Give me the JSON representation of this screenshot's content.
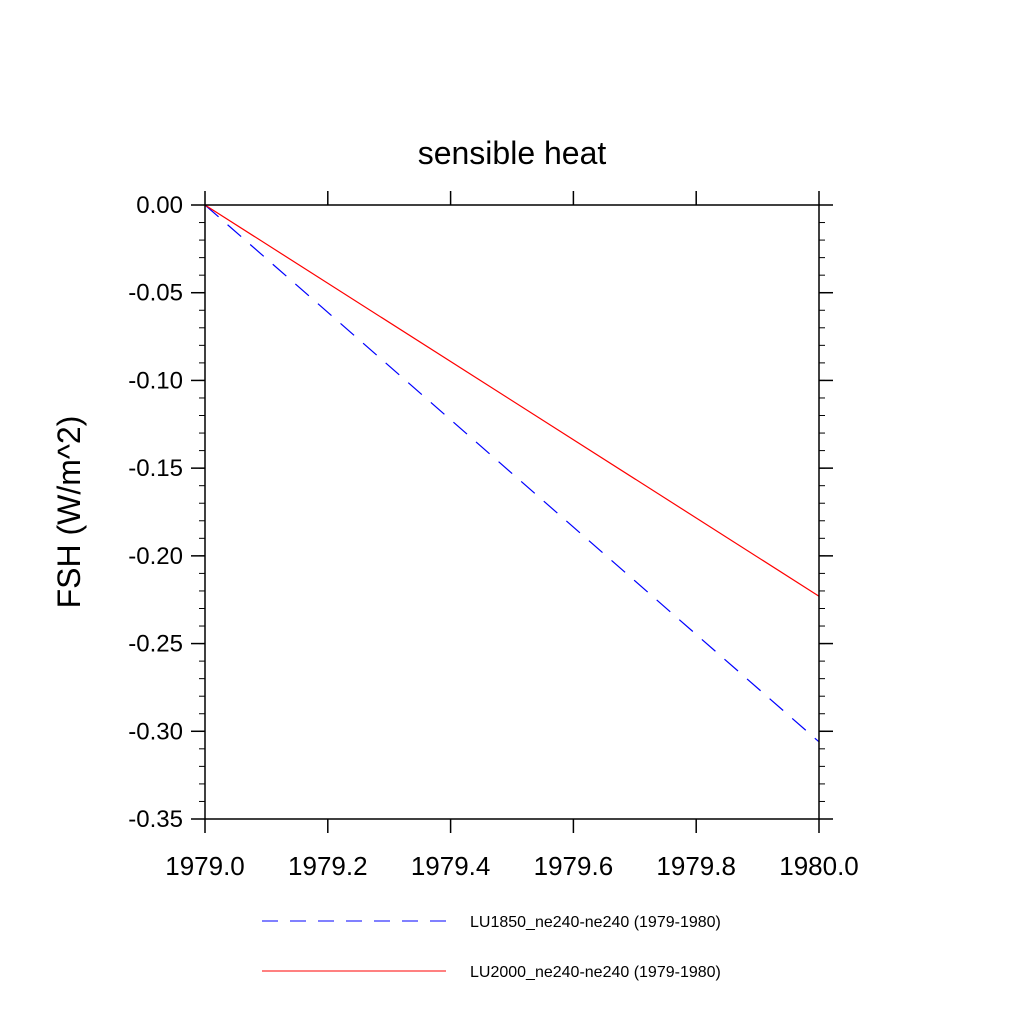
{
  "chart_data": {
    "type": "line",
    "title": "sensible heat",
    "xlabel": "",
    "ylabel": "FSH  (W/m^2)",
    "xlim": [
      1979.0,
      1980.0
    ],
    "ylim": [
      -0.35,
      0.0
    ],
    "xticks": [
      1979.0,
      1979.2,
      1979.4,
      1979.6,
      1979.8,
      1980.0
    ],
    "xtick_labels": [
      "1979.0",
      "1979.2",
      "1979.4",
      "1979.6",
      "1979.8",
      "1980.0"
    ],
    "yticks": [
      0.0,
      -0.05,
      -0.1,
      -0.15,
      -0.2,
      -0.25,
      -0.3,
      -0.35
    ],
    "ytick_labels": [
      "0.00",
      "-0.05",
      "-0.10",
      "-0.15",
      "-0.20",
      "-0.25",
      "-0.30",
      "-0.35"
    ],
    "grid": false,
    "legend_position": "bottom",
    "series": [
      {
        "name": "LU1850_ne240-ne240 (1979-1980)",
        "color": "#0000ff",
        "dash": "dashed",
        "x": [
          1979.0,
          1980.0
        ],
        "y": [
          0.0,
          -0.306
        ]
      },
      {
        "name": "LU2000_ne240-ne240 (1979-1980)",
        "color": "#ff0000",
        "dash": "solid",
        "x": [
          1979.0,
          1980.0
        ],
        "y": [
          0.0,
          -0.223
        ]
      }
    ]
  }
}
